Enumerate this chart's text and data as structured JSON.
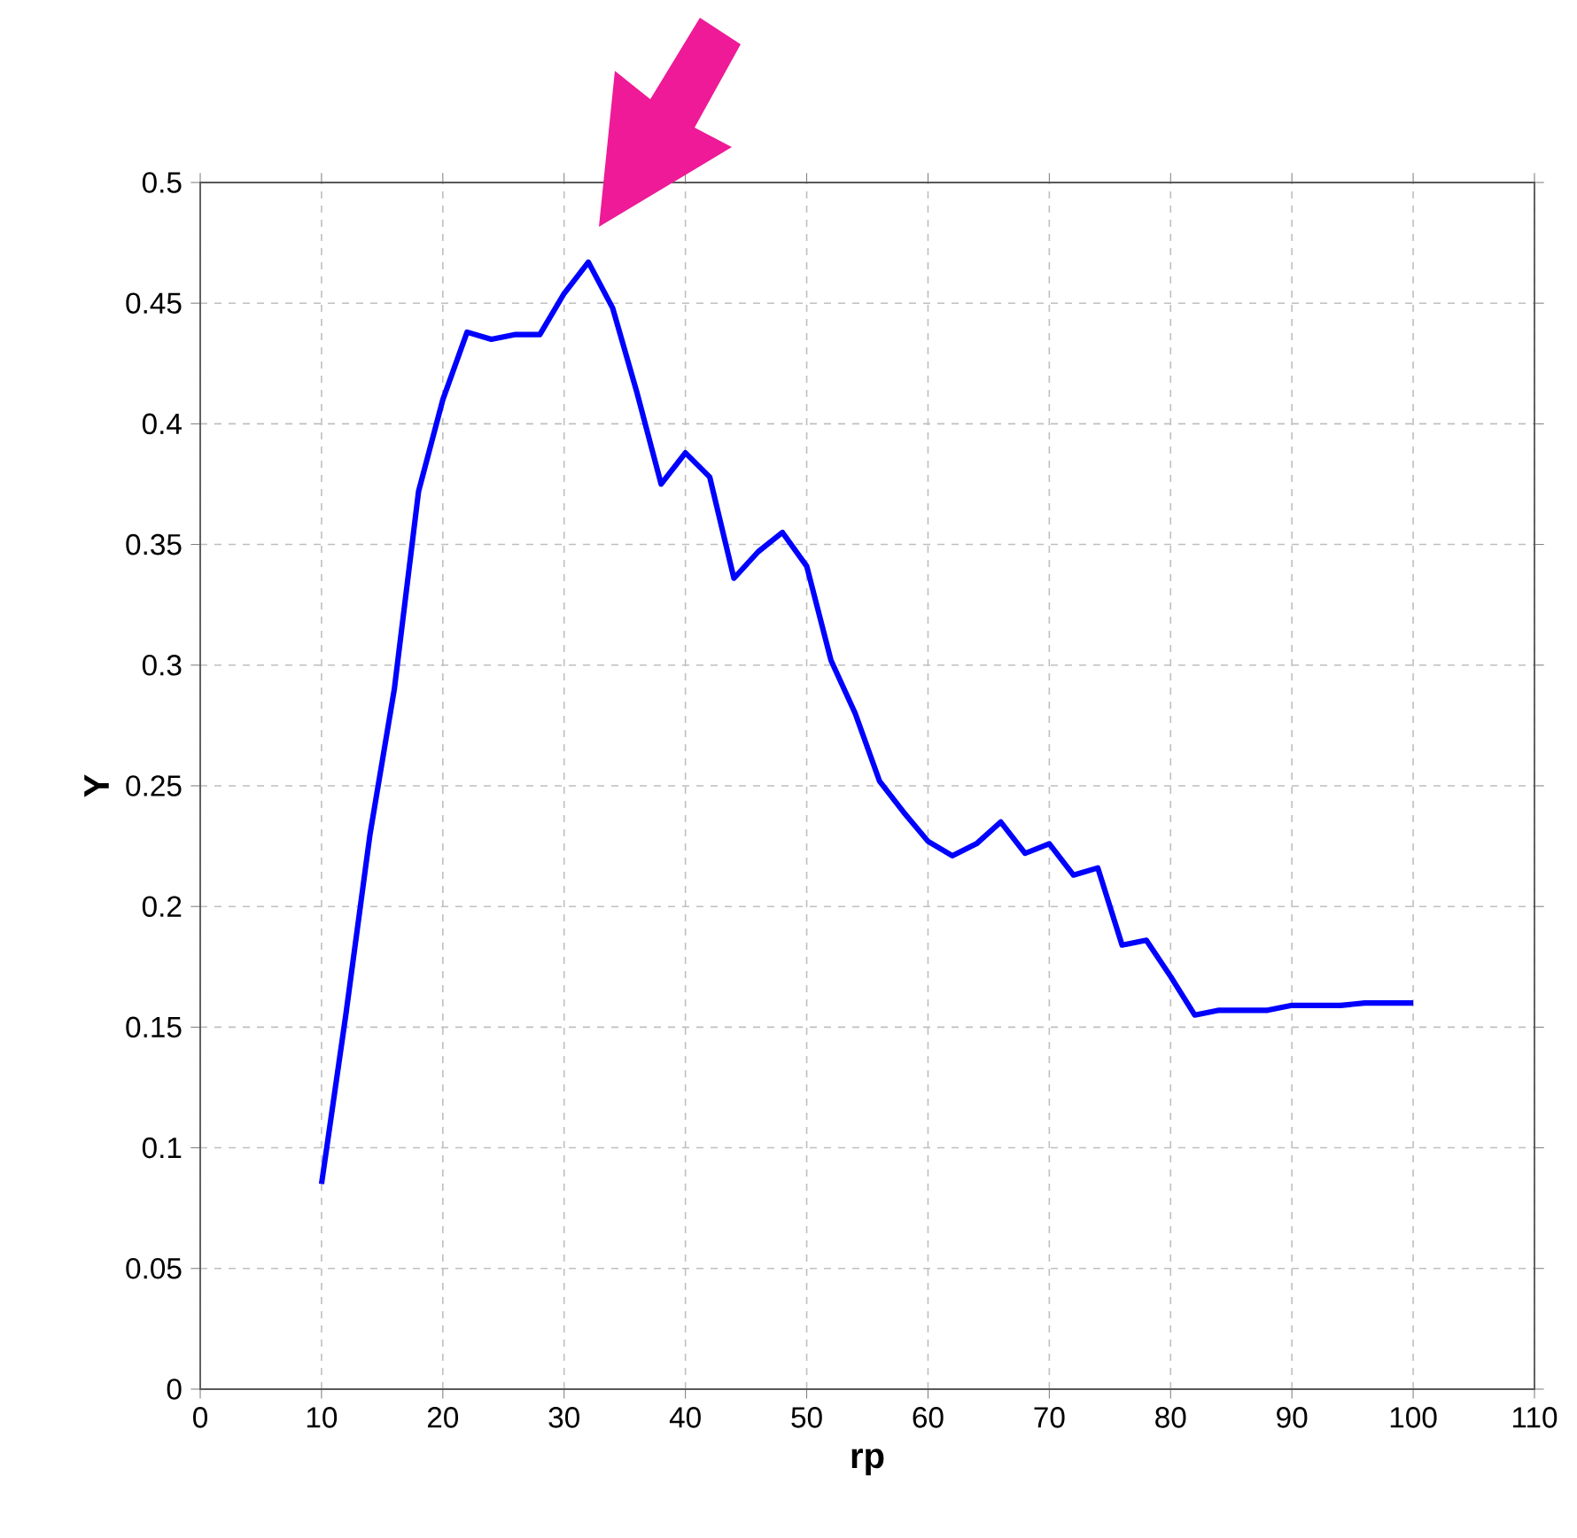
{
  "chart_data": {
    "type": "line",
    "xlabel": "rp",
    "ylabel": "Y",
    "x": [
      10,
      12,
      14,
      16,
      18,
      20,
      22,
      24,
      26,
      28,
      30,
      32,
      34,
      36,
      38,
      40,
      42,
      44,
      46,
      48,
      50,
      52,
      54,
      56,
      58,
      60,
      62,
      64,
      66,
      68,
      70,
      72,
      74,
      76,
      78,
      80,
      82,
      84,
      86,
      88,
      90,
      92,
      94,
      96,
      98,
      100
    ],
    "values": [
      0.085,
      0.155,
      0.23,
      0.29,
      0.372,
      0.41,
      0.438,
      0.435,
      0.437,
      0.437,
      0.454,
      0.467,
      0.448,
      0.413,
      0.375,
      0.388,
      0.378,
      0.336,
      0.347,
      0.355,
      0.341,
      0.302,
      0.28,
      0.252,
      0.239,
      0.227,
      0.221,
      0.226,
      0.235,
      0.222,
      0.226,
      0.213,
      0.216,
      0.184,
      0.186,
      0.171,
      0.155,
      0.157,
      0.157,
      0.157,
      0.159,
      0.159,
      0.159,
      0.16,
      0.16,
      0.16
    ],
    "color": "#0000ff",
    "marker": "none",
    "line_style": "solid",
    "grid": true,
    "xlim": [
      0,
      110
    ],
    "ylim": [
      0,
      0.5
    ],
    "xticks": [
      0,
      10,
      20,
      30,
      40,
      50,
      60,
      70,
      80,
      90,
      100,
      110
    ],
    "yticks": [
      0,
      0.05,
      0.1,
      0.15,
      0.2,
      0.25,
      0.3,
      0.35,
      0.4,
      0.45,
      0.5
    ]
  }
}
